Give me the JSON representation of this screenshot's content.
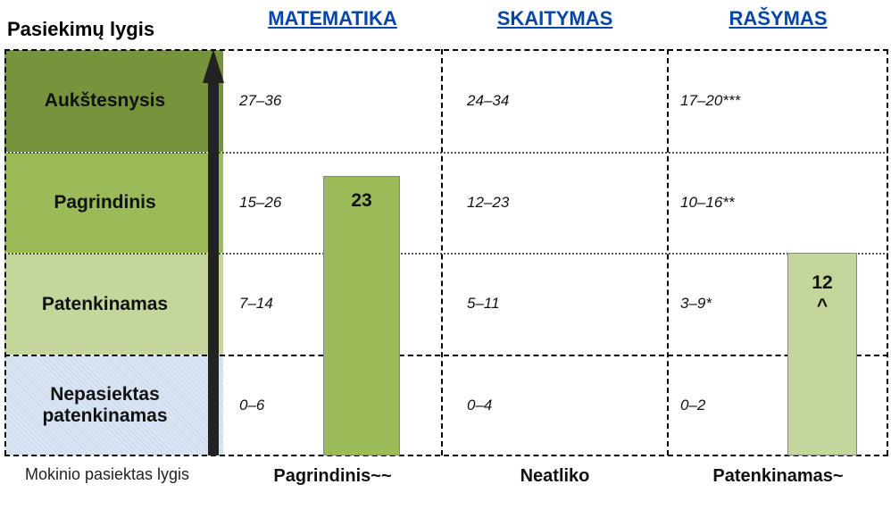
{
  "header": {
    "title": "Pasiekimų lygis",
    "subjects": [
      "MATEMATIKA",
      "SKAITYMAS",
      "RAŠYMAS"
    ]
  },
  "levels": [
    "Aukštesnysis",
    "Pagrindinis",
    "Patenkinamas",
    "Nepasiektas patenkinamas"
  ],
  "ranges": [
    [
      "27–36",
      "24–34",
      "17–20***"
    ],
    [
      "15–26",
      "12–23",
      "10–16**"
    ],
    [
      "7–14",
      "5–11",
      "3–9*"
    ],
    [
      "0–6",
      "0–4",
      "0–2"
    ]
  ],
  "bars": [
    {
      "value": 23
    },
    {
      "value": 12,
      "mark": "^"
    }
  ],
  "footer": {
    "label": "Mokinio pasiektas lygis",
    "results": [
      "Pagrindinis~~",
      "Neatliko",
      "Patenkinamas~"
    ]
  }
}
